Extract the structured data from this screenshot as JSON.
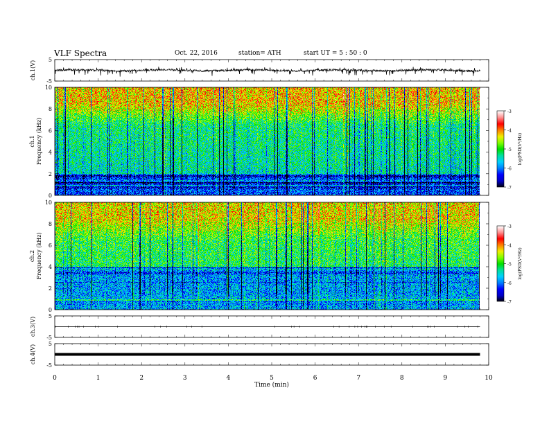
{
  "header": {
    "title": "VLF  Spectra",
    "date": "Oct. 22, 2016",
    "station": "station= ATH",
    "start": "start  UT  =   5  : 50 : 0"
  },
  "colors": {
    "colormap": [
      "#000000",
      "#0000c8",
      "#0000ff",
      "#0080ff",
      "#00d0ff",
      "#00e0a0",
      "#00e000",
      "#80ff00",
      "#f0f000",
      "#ff8000",
      "#ff0000",
      "#ff9090",
      "#ffffff"
    ]
  },
  "chart_data": [
    {
      "type": "line",
      "id": "ch1_waveform",
      "ylabel": "ch.1(V)",
      "ylim": [
        -5,
        5
      ],
      "yticks": [
        "5",
        "-5"
      ],
      "xlim": [
        0,
        10
      ],
      "description_level": "noisy waveform centered near 0 V, amplitude ~ ±1.5 V",
      "x_end": 9.8
    },
    {
      "type": "heatmap",
      "id": "ch1_spectrogram",
      "ylabel": "ch.1\nFrequency  (kHz)",
      "ylabel_channel": "ch.1",
      "ylabel_freq": "Frequency  (kHz)",
      "ylim": [
        0,
        10
      ],
      "yticks": [
        "0",
        "2",
        "4",
        "6",
        "8",
        "10"
      ],
      "xlim": [
        0,
        10
      ],
      "x_end": 9.8,
      "colorbar": {
        "label": "log(PSD(V²/Hz)",
        "range": [
          -7,
          -3
        ],
        "ticks": [
          "-3",
          "-4",
          "-5",
          "-6",
          "-7"
        ]
      },
      "profile": {
        "low_band_kHz": [
          0,
          2
        ],
        "low_band_log": -6.2,
        "mid_band_log": -5.2,
        "high_band_log": -4.2
      }
    },
    {
      "type": "heatmap",
      "id": "ch2_spectrogram",
      "ylabel": "ch.2\nFrequency  (kHz)",
      "ylabel_channel": "ch.2",
      "ylabel_freq": "Frequency  (kHz)",
      "ylim": [
        0,
        10
      ],
      "yticks": [
        "0",
        "2",
        "4",
        "6",
        "8",
        "10"
      ],
      "xlim": [
        0,
        10
      ],
      "x_end": 9.8,
      "colorbar": {
        "label": "log(PSD(V²/Hz)",
        "range": [
          -7,
          -3
        ],
        "ticks": [
          "-3",
          "-4",
          "-5",
          "-6",
          "-7"
        ]
      },
      "profile": {
        "low_band_kHz": [
          0,
          4
        ],
        "low_band_log": -5.8,
        "mid_band_log": -5.0,
        "high_band_log": -4.3
      }
    },
    {
      "type": "line",
      "id": "ch3_waveform",
      "ylabel": "ch.3(V)",
      "ylim": [
        -5,
        5
      ],
      "yticks": [
        "5",
        "-5"
      ],
      "xlim": [
        0,
        10
      ],
      "level": 0,
      "x_end": 9.8
    },
    {
      "type": "line",
      "id": "ch4_waveform",
      "ylabel": "ch.4(V)",
      "ylim": [
        -5,
        5
      ],
      "yticks": [
        "5",
        "-5"
      ],
      "xlim": [
        0,
        10
      ],
      "level": 0,
      "x_end": 9.8
    }
  ],
  "xaxis": {
    "label": "Time  (min)",
    "ticks": [
      "0",
      "1",
      "2",
      "3",
      "4",
      "5",
      "6",
      "7",
      "8",
      "9",
      "10"
    ]
  }
}
